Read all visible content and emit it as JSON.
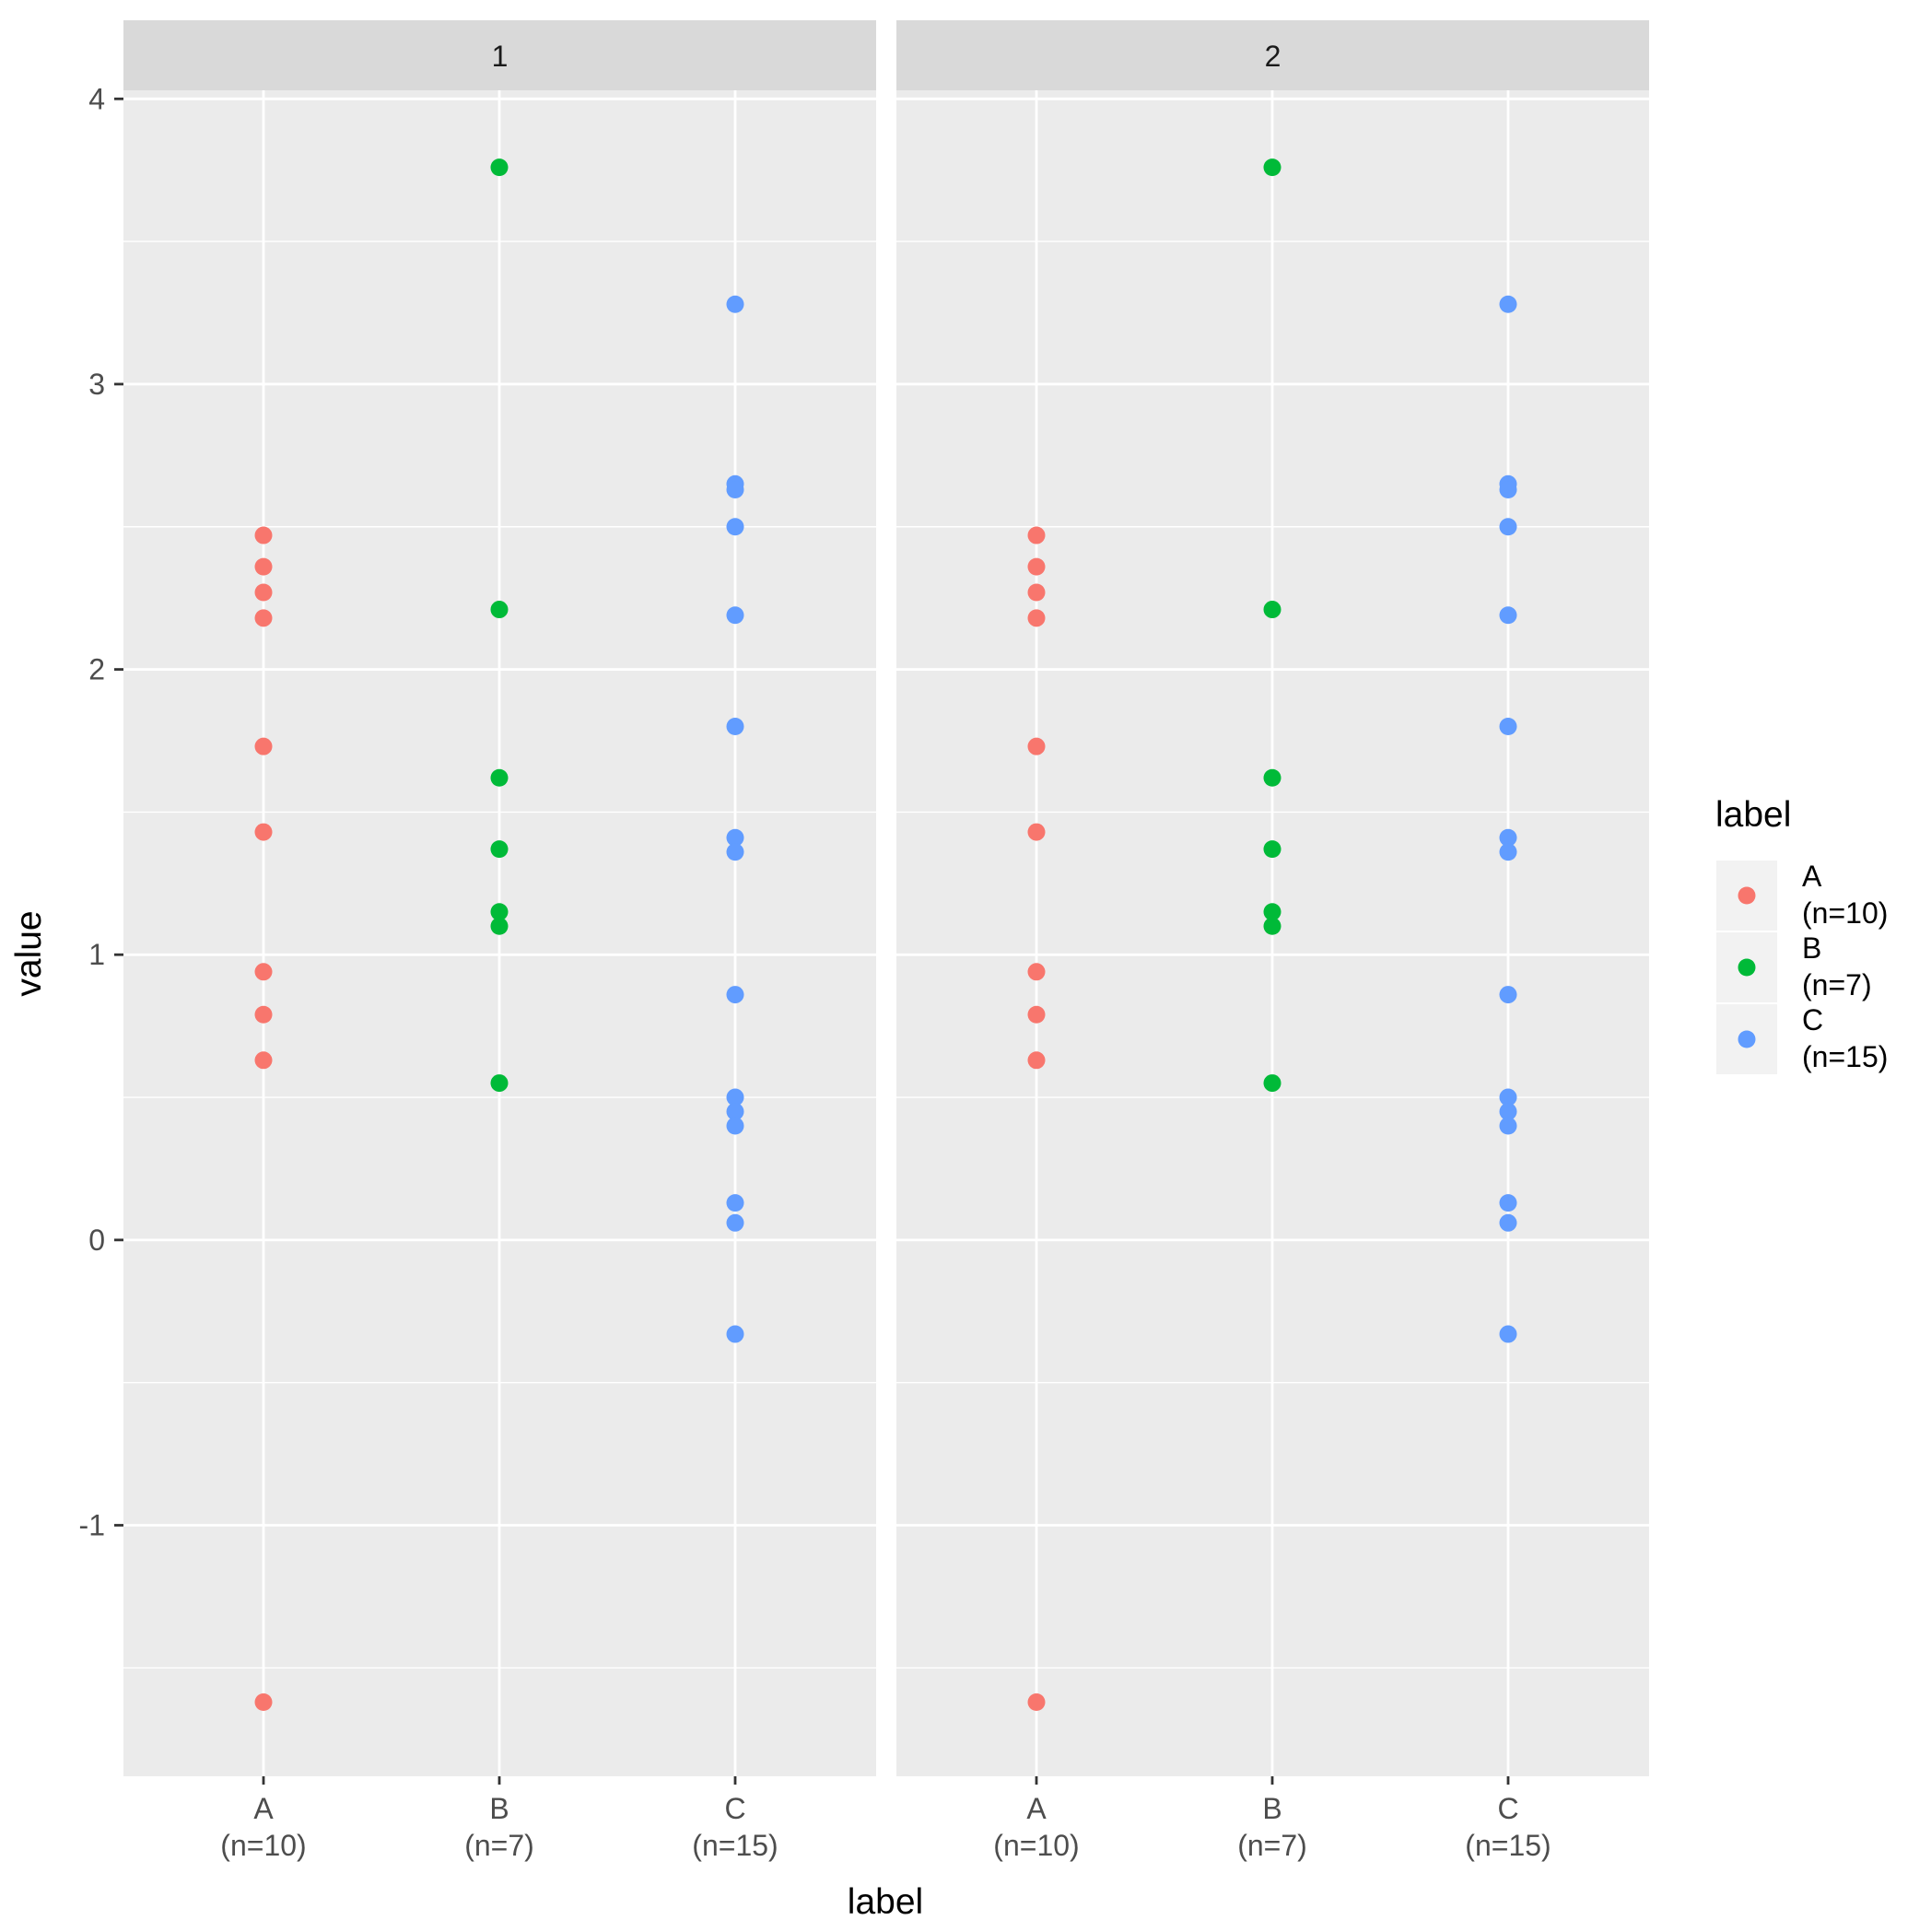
{
  "chart_data": {
    "type": "scatter",
    "facet_variable": "",
    "facets": [
      "1",
      "2"
    ],
    "categories": [
      "A\n(n=10)",
      "B\n(n=7)",
      "C\n(n=15)"
    ],
    "xlabel": "label",
    "ylabel": "value",
    "yticks": [
      -1,
      0,
      1,
      2,
      3,
      4
    ],
    "ylim": [
      -1.88,
      4.03
    ],
    "grid": true,
    "legend": {
      "title": "label",
      "position": "right",
      "entries": [
        "A\n(n=10)",
        "B\n(n=7)",
        "C\n(n=15)"
      ]
    },
    "colors": {
      "A": "#F8766D",
      "B": "#00BA38",
      "C": "#619CFF",
      "panel_background": "#EBEBEB",
      "strip_background": "#D9D9D9",
      "grid": "#FFFFFF"
    },
    "series": [
      {
        "name": "A\n(n=10)",
        "values": [
          2.47,
          2.36,
          2.27,
          2.18,
          1.73,
          1.43,
          0.94,
          0.79,
          0.63,
          -1.62
        ]
      },
      {
        "name": "B\n(n=7)",
        "values": [
          3.76,
          2.21,
          1.62,
          1.37,
          1.15,
          1.1,
          0.55
        ]
      },
      {
        "name": "C\n(n=15)",
        "values": [
          3.28,
          2.65,
          2.63,
          2.5,
          2.19,
          1.8,
          1.41,
          1.36,
          0.86,
          0.5,
          0.45,
          0.4,
          0.13,
          0.06,
          -0.33
        ]
      }
    ]
  }
}
